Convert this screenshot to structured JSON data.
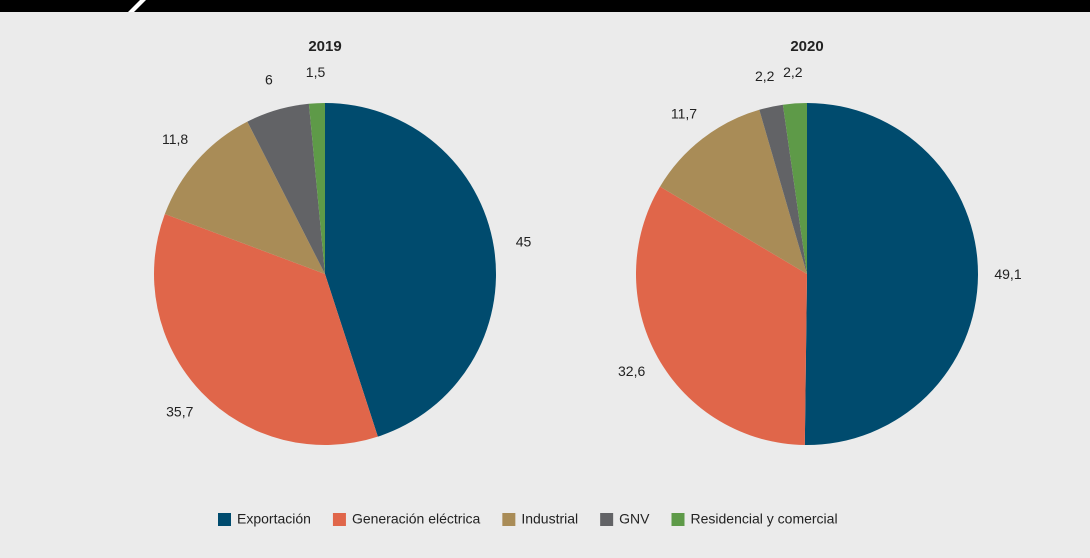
{
  "chart_data": [
    {
      "type": "pie",
      "title": "2019",
      "categories": [
        "Exportación",
        "Generación eléctrica",
        "Industrial",
        "GNV",
        "Residencial y comercial"
      ],
      "values": [
        45,
        35.7,
        11.8,
        6,
        1.5
      ],
      "value_labels": [
        "45",
        "35,7",
        "11,8",
        "6",
        "1,5"
      ],
      "colors": [
        "#004b6e",
        "#e0664a",
        "#a98c57",
        "#626366",
        "#5e9a48"
      ]
    },
    {
      "type": "pie",
      "title": "2020",
      "categories": [
        "Exportación",
        "Generación eléctrica",
        "Industrial",
        "GNV",
        "Residencial y comercial"
      ],
      "values": [
        49.1,
        32.6,
        11.7,
        2.2,
        2.2
      ],
      "value_labels": [
        "49,1",
        "32,6",
        "11,7",
        "2,2",
        "2,2"
      ],
      "colors": [
        "#004b6e",
        "#e0664a",
        "#a98c57",
        "#626366",
        "#5e9a48"
      ]
    }
  ]
}
